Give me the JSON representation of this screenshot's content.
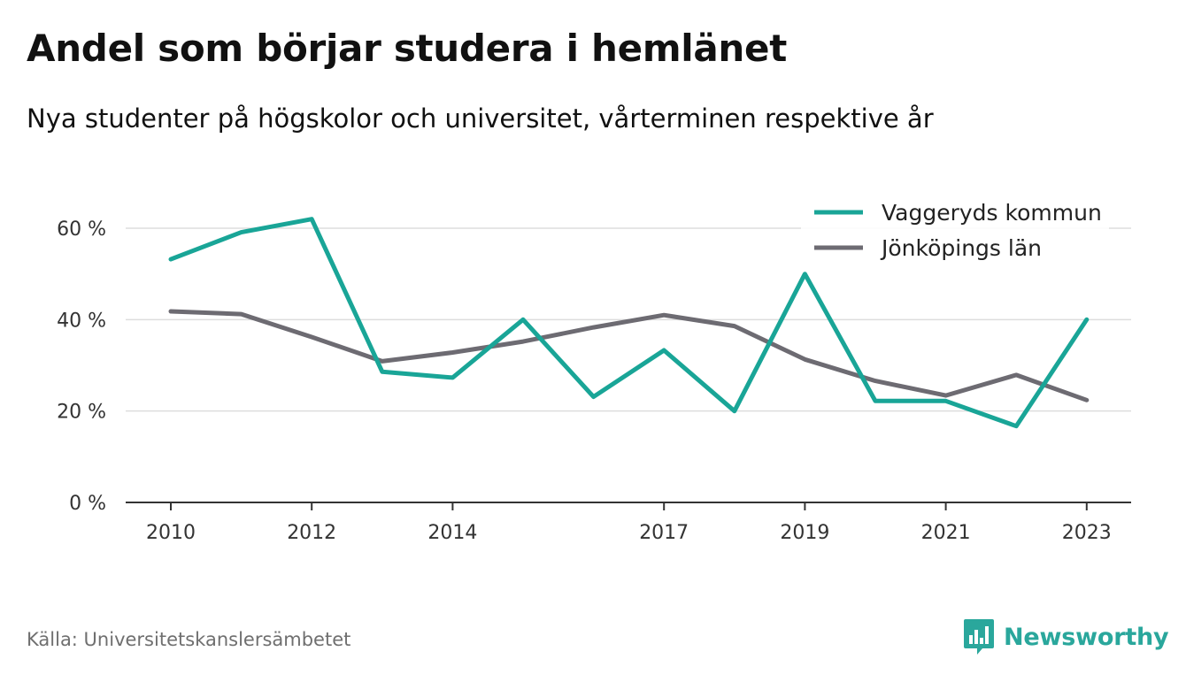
{
  "title": "Andel som börjar studera i hemlänet",
  "subtitle": "Nya studenter på högskolor och universitet, vårterminen respektive år",
  "source": "Källa: Universitetskanslersämbetet",
  "brand": {
    "name": "Newsworthy",
    "icon": "bar-chart-logo-icon",
    "color": "#2aa79c"
  },
  "chart_data": {
    "type": "line",
    "x": [
      2010,
      2011,
      2012,
      2013,
      2014,
      2015,
      2016,
      2017,
      2018,
      2019,
      2020,
      2021,
      2022,
      2023
    ],
    "x_ticks": [
      "2010",
      "2012",
      "2014",
      "2017",
      "2019",
      "2021",
      "2023"
    ],
    "y_ticks": [
      0,
      20,
      40,
      60
    ],
    "y_tick_labels": [
      "0 %",
      "20 %",
      "40 %",
      "60 %"
    ],
    "ylim": [
      0,
      60
    ],
    "grid": true,
    "legend_position": "top-right",
    "series": [
      {
        "name": "Vaggeryds kommun",
        "color": "#19a597",
        "values": [
          53.2,
          59.1,
          62.0,
          28.6,
          27.3,
          40.0,
          23.1,
          33.3,
          20.0,
          50.0,
          22.2,
          22.2,
          16.7,
          40.0
        ]
      },
      {
        "name": "Jönköpings län",
        "color": "#6d6b72",
        "values": [
          41.8,
          41.2,
          36.2,
          30.9,
          32.8,
          35.2,
          38.3,
          41.0,
          38.6,
          31.3,
          26.6,
          23.4,
          27.9,
          22.4
        ]
      }
    ]
  }
}
